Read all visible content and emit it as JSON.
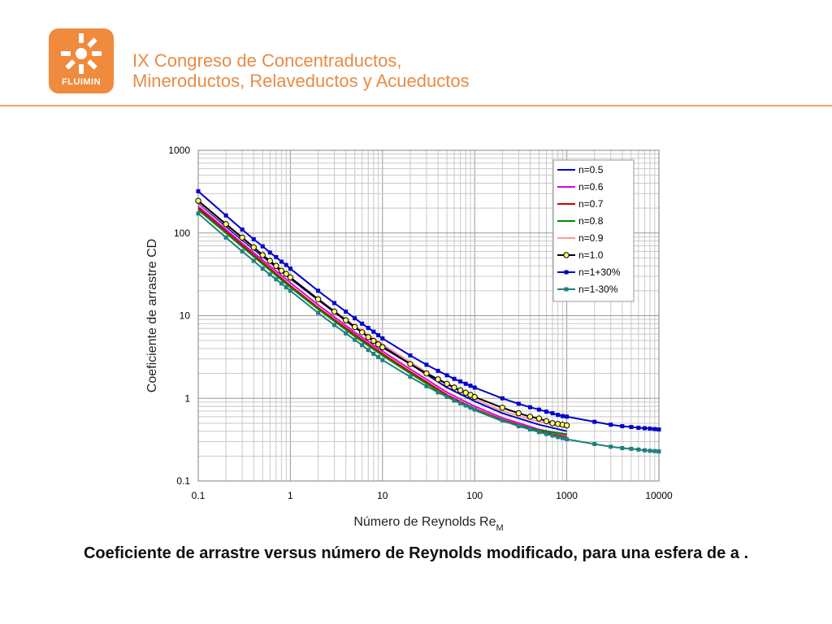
{
  "header": {
    "logo_text": "FLUIMIN",
    "title_line1": "IX Congreso de Concentraductos,",
    "title_line2": "Mineroductos, Relaveductos y Acueductos"
  },
  "caption": "Coeficiente de arrastre versus número de Reynolds modificado, para una esfera de a .",
  "chart_data": {
    "type": "line",
    "xlabel": "Número de Reynolds Re",
    "xlabel_subscript": "M",
    "ylabel": "Coeficiente de arrastre CD",
    "xscale": "log",
    "yscale": "log",
    "xlim": [
      0.1,
      10000
    ],
    "ylim": [
      0.1,
      1000
    ],
    "x_ticks": [
      "0.1",
      "1",
      "10",
      "100",
      "1000",
      "10000"
    ],
    "y_ticks": [
      "0.1",
      "1",
      "10",
      "100",
      "1000"
    ],
    "grid": true,
    "legend_position": "top-right",
    "series": [
      {
        "name": "n=0.5",
        "color": "#0000cc",
        "marker": "none",
        "points": [
          [
            0.1,
            230
          ],
          [
            0.2,
            120
          ],
          [
            0.3,
            82
          ],
          [
            0.5,
            52
          ],
          [
            1,
            28
          ],
          [
            2,
            15.5
          ],
          [
            5,
            7.2
          ],
          [
            10,
            4.3
          ],
          [
            20,
            2.6
          ],
          [
            50,
            1.35
          ],
          [
            100,
            0.92
          ],
          [
            200,
            0.66
          ],
          [
            500,
            0.48
          ],
          [
            1000,
            0.4
          ]
        ]
      },
      {
        "name": "n=0.6",
        "color": "#e000e0",
        "marker": "none",
        "points": [
          [
            0.1,
            210
          ],
          [
            0.2,
            110
          ],
          [
            0.3,
            75
          ],
          [
            0.5,
            47
          ],
          [
            1,
            25
          ],
          [
            2,
            13.5
          ],
          [
            5,
            6.3
          ],
          [
            10,
            3.7
          ],
          [
            20,
            2.25
          ],
          [
            50,
            1.18
          ],
          [
            100,
            0.8
          ],
          [
            200,
            0.58
          ],
          [
            500,
            0.42
          ],
          [
            1000,
            0.36
          ]
        ]
      },
      {
        "name": "n=0.7",
        "color": "#cc0000",
        "marker": "none",
        "points": [
          [
            0.1,
            200
          ],
          [
            0.2,
            105
          ],
          [
            0.3,
            71
          ],
          [
            0.5,
            44
          ],
          [
            1,
            23
          ],
          [
            2,
            12.5
          ],
          [
            5,
            5.9
          ],
          [
            10,
            3.45
          ],
          [
            20,
            2.1
          ],
          [
            50,
            1.1
          ],
          [
            100,
            0.75
          ],
          [
            200,
            0.55
          ],
          [
            500,
            0.4
          ],
          [
            1000,
            0.34
          ]
        ]
      },
      {
        "name": "n=0.8",
        "color": "#008800",
        "marker": "none",
        "points": [
          [
            0.1,
            190
          ],
          [
            0.2,
            100
          ],
          [
            0.3,
            68
          ],
          [
            0.5,
            42
          ],
          [
            1,
            22
          ],
          [
            2,
            12
          ],
          [
            5,
            5.6
          ],
          [
            10,
            3.3
          ],
          [
            20,
            2.0
          ],
          [
            50,
            1.05
          ],
          [
            100,
            0.72
          ],
          [
            200,
            0.53
          ],
          [
            500,
            0.41
          ],
          [
            1000,
            0.37
          ]
        ]
      },
      {
        "name": "n=0.9",
        "color": "#ff9999",
        "marker": "none",
        "points": [
          [
            0.1,
            235
          ],
          [
            0.2,
            125
          ],
          [
            0.3,
            85
          ],
          [
            0.5,
            54
          ],
          [
            1,
            29
          ],
          [
            2,
            16
          ],
          [
            5,
            7.5
          ],
          [
            10,
            4.5
          ],
          [
            20,
            2.75
          ],
          [
            50,
            1.45
          ],
          [
            100,
            0.98
          ],
          [
            200,
            0.7
          ],
          [
            500,
            0.52
          ],
          [
            1000,
            0.44
          ]
        ]
      },
      {
        "name": "n=1.0",
        "color": "#000000",
        "marker": "circle",
        "marker_fill": "#ffff66",
        "points": [
          [
            0.1,
            245
          ],
          [
            0.2,
            128
          ],
          [
            0.3,
            88
          ],
          [
            0.4,
            67
          ],
          [
            0.5,
            54
          ],
          [
            0.6,
            46
          ],
          [
            0.7,
            40
          ],
          [
            0.8,
            35
          ],
          [
            0.9,
            32
          ],
          [
            1,
            29
          ],
          [
            2,
            15.8
          ],
          [
            3,
            11.2
          ],
          [
            4,
            8.8
          ],
          [
            5,
            7.3
          ],
          [
            6,
            6.3
          ],
          [
            7,
            5.5
          ],
          [
            8,
            4.95
          ],
          [
            9,
            4.5
          ],
          [
            10,
            4.15
          ],
          [
            20,
            2.6
          ],
          [
            30,
            2.0
          ],
          [
            40,
            1.7
          ],
          [
            50,
            1.5
          ],
          [
            60,
            1.35
          ],
          [
            70,
            1.25
          ],
          [
            80,
            1.17
          ],
          [
            90,
            1.1
          ],
          [
            100,
            1.04
          ],
          [
            200,
            0.77
          ],
          [
            300,
            0.66
          ],
          [
            400,
            0.6
          ],
          [
            500,
            0.57
          ],
          [
            600,
            0.53
          ],
          [
            700,
            0.5
          ],
          [
            800,
            0.49
          ],
          [
            900,
            0.48
          ],
          [
            1000,
            0.47
          ]
        ]
      },
      {
        "name": "n=1+30%",
        "color": "#0000cc",
        "marker": "square",
        "points": [
          [
            0.1,
            320
          ],
          [
            0.2,
            163
          ],
          [
            0.3,
            110
          ],
          [
            0.4,
            84
          ],
          [
            0.5,
            69
          ],
          [
            0.6,
            58
          ],
          [
            0.7,
            51
          ],
          [
            0.8,
            45
          ],
          [
            0.9,
            41
          ],
          [
            1,
            37
          ],
          [
            2,
            20
          ],
          [
            3,
            14.2
          ],
          [
            4,
            11.2
          ],
          [
            5,
            9.3
          ],
          [
            6,
            8.0
          ],
          [
            7,
            7.1
          ],
          [
            8,
            6.4
          ],
          [
            9,
            5.8
          ],
          [
            10,
            5.3
          ],
          [
            20,
            3.3
          ],
          [
            30,
            2.55
          ],
          [
            40,
            2.15
          ],
          [
            50,
            1.9
          ],
          [
            60,
            1.72
          ],
          [
            70,
            1.6
          ],
          [
            80,
            1.5
          ],
          [
            90,
            1.42
          ],
          [
            100,
            1.35
          ],
          [
            200,
            1.0
          ],
          [
            300,
            0.86
          ],
          [
            400,
            0.78
          ],
          [
            500,
            0.73
          ],
          [
            600,
            0.69
          ],
          [
            700,
            0.66
          ],
          [
            800,
            0.63
          ],
          [
            900,
            0.61
          ],
          [
            1000,
            0.6
          ],
          [
            2000,
            0.52
          ],
          [
            3000,
            0.48
          ],
          [
            4000,
            0.46
          ],
          [
            5000,
            0.45
          ],
          [
            6000,
            0.44
          ],
          [
            7000,
            0.435
          ],
          [
            8000,
            0.43
          ],
          [
            9000,
            0.425
          ],
          [
            10000,
            0.42
          ]
        ]
      },
      {
        "name": "n=1-30%",
        "color": "#208080",
        "marker": "square",
        "points": [
          [
            0.1,
            172
          ],
          [
            0.2,
            88
          ],
          [
            0.3,
            60
          ],
          [
            0.4,
            46
          ],
          [
            0.5,
            37
          ],
          [
            0.6,
            31.5
          ],
          [
            0.7,
            27.5
          ],
          [
            0.8,
            24.5
          ],
          [
            0.9,
            22
          ],
          [
            1,
            20
          ],
          [
            2,
            10.8
          ],
          [
            3,
            7.7
          ],
          [
            4,
            6.1
          ],
          [
            5,
            5.1
          ],
          [
            6,
            4.4
          ],
          [
            7,
            3.85
          ],
          [
            8,
            3.45
          ],
          [
            9,
            3.15
          ],
          [
            10,
            2.9
          ],
          [
            20,
            1.82
          ],
          [
            30,
            1.4
          ],
          [
            40,
            1.18
          ],
          [
            50,
            1.04
          ],
          [
            60,
            0.94
          ],
          [
            70,
            0.87
          ],
          [
            80,
            0.82
          ],
          [
            90,
            0.77
          ],
          [
            100,
            0.73
          ],
          [
            200,
            0.54
          ],
          [
            300,
            0.46
          ],
          [
            400,
            0.42
          ],
          [
            500,
            0.39
          ],
          [
            600,
            0.37
          ],
          [
            700,
            0.355
          ],
          [
            800,
            0.34
          ],
          [
            900,
            0.33
          ],
          [
            1000,
            0.32
          ],
          [
            2000,
            0.28
          ],
          [
            3000,
            0.26
          ],
          [
            4000,
            0.25
          ],
          [
            5000,
            0.245
          ],
          [
            6000,
            0.24
          ],
          [
            7000,
            0.235
          ],
          [
            8000,
            0.232
          ],
          [
            9000,
            0.23
          ],
          [
            10000,
            0.228
          ]
        ]
      }
    ]
  }
}
